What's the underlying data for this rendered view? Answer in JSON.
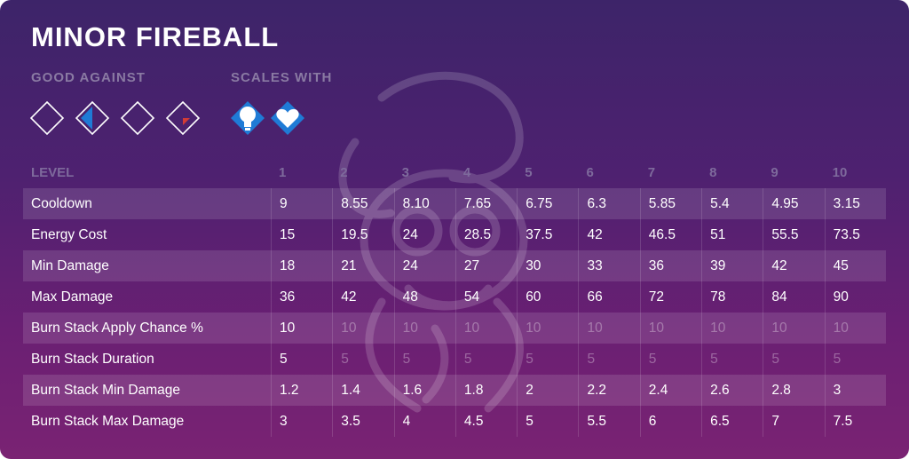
{
  "title": "MINOR FIREBALL",
  "good_against": {
    "label": "GOOD AGAINST",
    "icons": [
      "empty-diamond-icon",
      "blue-half-diamond-icon",
      "empty-diamond-icon",
      "red-corner-diamond-icon"
    ]
  },
  "scales_with": {
    "label": "SCALES WITH",
    "icons": [
      "lightbulb-diamond-icon",
      "heart-diamond-icon"
    ]
  },
  "colors": {
    "accent_blue": "#1f7bd6",
    "accent_red": "#d23c36",
    "bg_top": "#3d2469",
    "bg_bottom": "#7a2373"
  },
  "table": {
    "header": "LEVEL",
    "levels": [
      "1",
      "2",
      "3",
      "4",
      "5",
      "6",
      "7",
      "8",
      "9",
      "10"
    ],
    "rows": [
      {
        "name": "Cooldown",
        "values": [
          "9",
          "8.55",
          "8.10",
          "7.65",
          "6.75",
          "6.3",
          "5.85",
          "5.4",
          "4.95",
          "3.15"
        ],
        "dim_from": null
      },
      {
        "name": "Energy Cost",
        "values": [
          "15",
          "19.5",
          "24",
          "28.5",
          "37.5",
          "42",
          "46.5",
          "51",
          "55.5",
          "73.5"
        ],
        "dim_from": null
      },
      {
        "name": "Min Damage",
        "values": [
          "18",
          "21",
          "24",
          "27",
          "30",
          "33",
          "36",
          "39",
          "42",
          "45"
        ],
        "dim_from": null
      },
      {
        "name": "Max Damage",
        "values": [
          "36",
          "42",
          "48",
          "54",
          "60",
          "66",
          "72",
          "78",
          "84",
          "90"
        ],
        "dim_from": null
      },
      {
        "name": "Burn Stack Apply Chance %",
        "values": [
          "10",
          "10",
          "10",
          "10",
          "10",
          "10",
          "10",
          "10",
          "10",
          "10"
        ],
        "dim_from": 1
      },
      {
        "name": "Burn Stack Duration",
        "values": [
          "5",
          "5",
          "5",
          "5",
          "5",
          "5",
          "5",
          "5",
          "5",
          "5"
        ],
        "dim_from": 1
      },
      {
        "name": "Burn Stack Min Damage",
        "values": [
          "1.2",
          "1.4",
          "1.6",
          "1.8",
          "2",
          "2.2",
          "2.4",
          "2.6",
          "2.8",
          "3"
        ],
        "dim_from": null
      },
      {
        "name": "Burn Stack Max Damage",
        "values": [
          "3",
          "3.5",
          "4",
          "4.5",
          "5",
          "5.5",
          "6",
          "6.5",
          "7",
          "7.5"
        ],
        "dim_from": null
      }
    ]
  }
}
